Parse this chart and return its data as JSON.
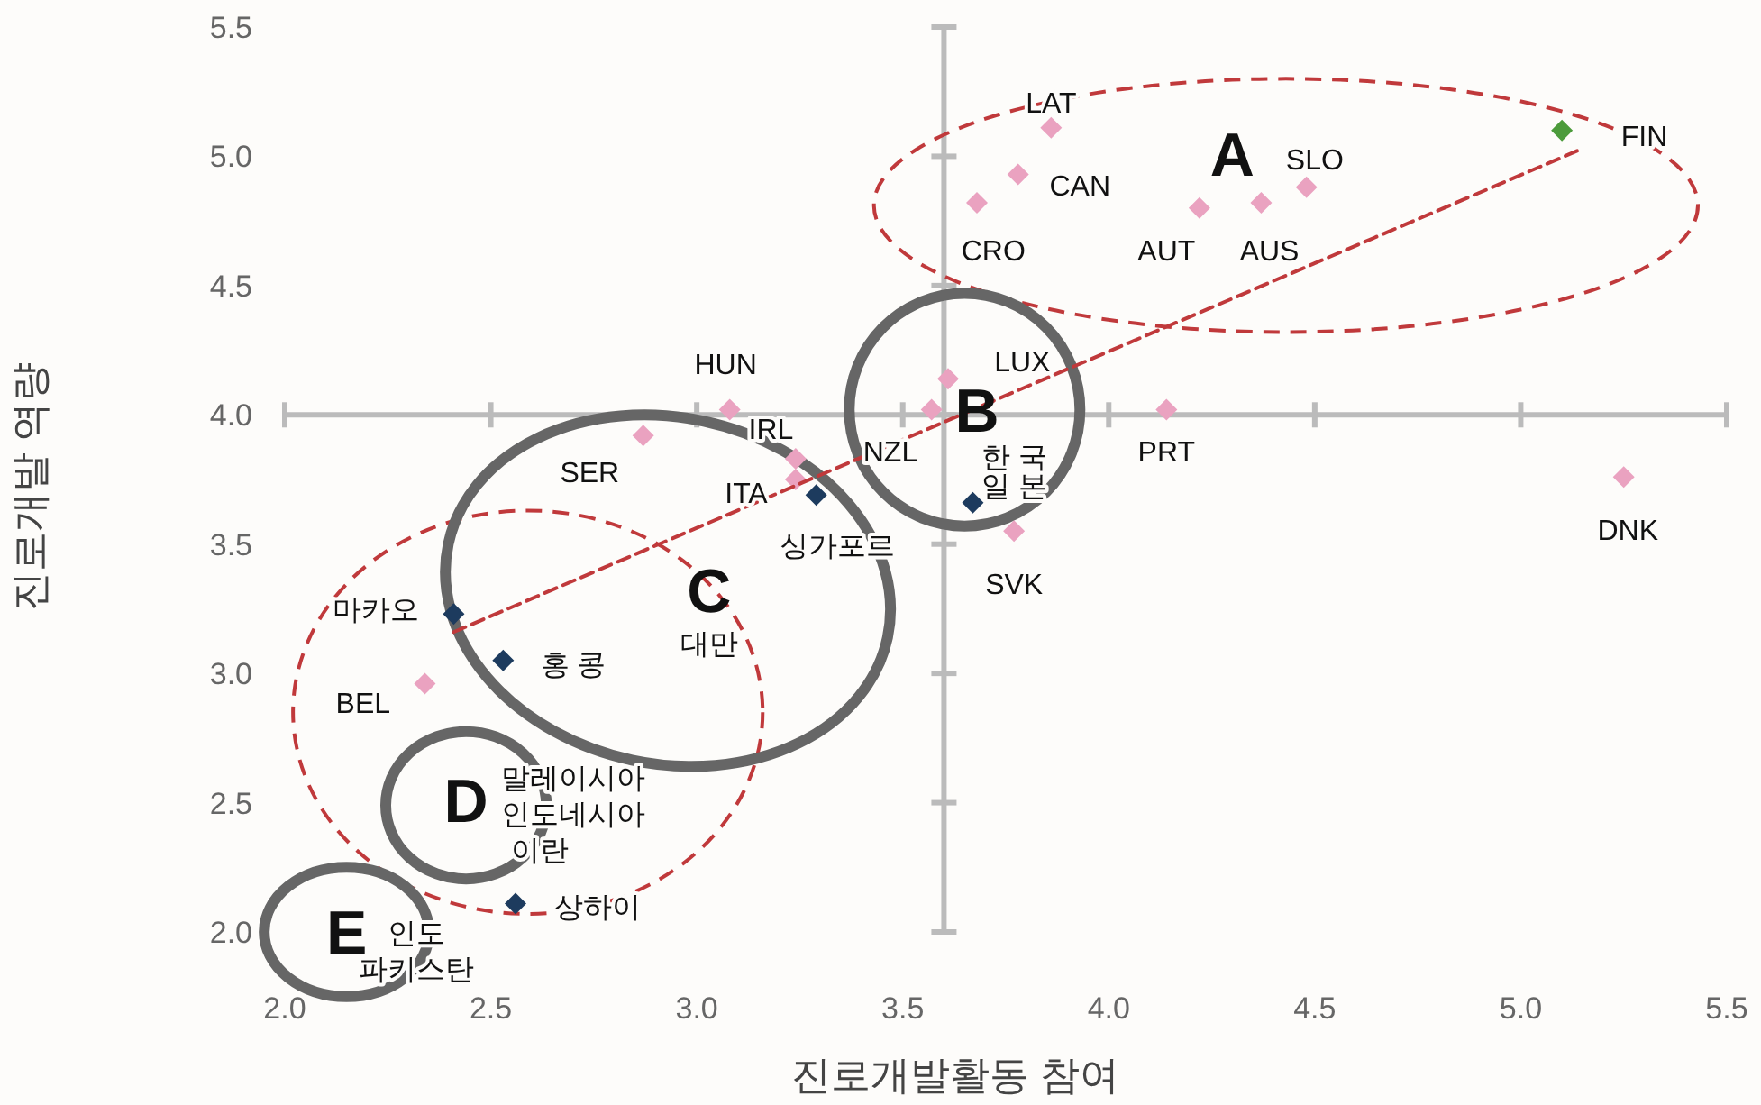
{
  "chart_data": {
    "type": "scatter",
    "xlabel": "진로개발활동 참여",
    "ylabel": "진로개발 역량",
    "xlim": [
      2,
      5.5
    ],
    "ylim": [
      2,
      5.5
    ],
    "xticks": [
      {
        "value": 2,
        "label": "2.0"
      },
      {
        "value": 2.5,
        "label": "2.5"
      },
      {
        "value": 3,
        "label": "3.0"
      },
      {
        "value": 3.5,
        "label": "3.5"
      },
      {
        "value": 4,
        "label": "4.0"
      },
      {
        "value": 4.5,
        "label": "4.5"
      },
      {
        "value": 5,
        "label": "5.0"
      },
      {
        "value": 5.5,
        "label": "5.5"
      }
    ],
    "yticks": [
      {
        "value": 2,
        "label": "2.0"
      },
      {
        "value": 2.5,
        "label": "2.5"
      },
      {
        "value": 3,
        "label": "3.0"
      },
      {
        "value": 3.5,
        "label": "3.5"
      },
      {
        "value": 4,
        "label": "4.0"
      },
      {
        "value": 4.5,
        "label": "4.5"
      },
      {
        "value": 5,
        "label": "5.0"
      },
      {
        "value": 5.5,
        "label": "5.5"
      }
    ],
    "marker": "diamond",
    "grid": false,
    "series": [
      {
        "color": "#eaa2c0",
        "x": [
          3.86,
          3.78,
          3.68,
          4.22,
          4.37,
          4.48,
          3.61,
          3.57,
          4.14,
          5.25,
          3.77,
          3.08,
          2.87,
          3.24,
          3.24,
          2.34
        ],
        "values": [
          5.11,
          4.93,
          4.82,
          4.8,
          4.82,
          4.88,
          4.14,
          4.02,
          4.02,
          3.76,
          3.55,
          4.02,
          3.92,
          3.83,
          3.75,
          2.96
        ]
      },
      {
        "color": "#1d3b5e",
        "x": [
          3.29,
          3.67,
          2.41,
          2.53,
          2.56
        ],
        "values": [
          3.69,
          3.66,
          3.23,
          3.05,
          2.11
        ]
      },
      {
        "color": "#4c9b3b",
        "x": [
          5.1
        ],
        "values": [
          5.1
        ]
      },
      {
        "type": "line",
        "color": "#c0393b",
        "line_style": "dashed",
        "marker": "none",
        "x": [
          2.41,
          5.15
        ],
        "values": [
          3.16,
          5.03
        ]
      }
    ],
    "ref_lines": [
      {
        "axis": "x",
        "value": 3.6,
        "color": "#bbbbbb"
      },
      {
        "axis": "y",
        "value": 4.0,
        "color": "#bbbbbb"
      }
    ],
    "annotations": [
      "A",
      "B",
      "C",
      "D",
      "E",
      "LAT",
      "CAN",
      "CRO",
      "AUT",
      "AUS",
      "SLO",
      "FIN",
      "LUX",
      "NZL",
      "PRT",
      "DNK",
      "SVK",
      "HUN",
      "SER",
      "IRL",
      "ITA",
      "싱가포르",
      "한 국",
      "일 본",
      "대만",
      "마카오",
      "홍 콩",
      "BEL",
      "말레이시아",
      "인도네시아",
      "이란",
      "상하이",
      "인도",
      "파키스탄"
    ]
  }
}
